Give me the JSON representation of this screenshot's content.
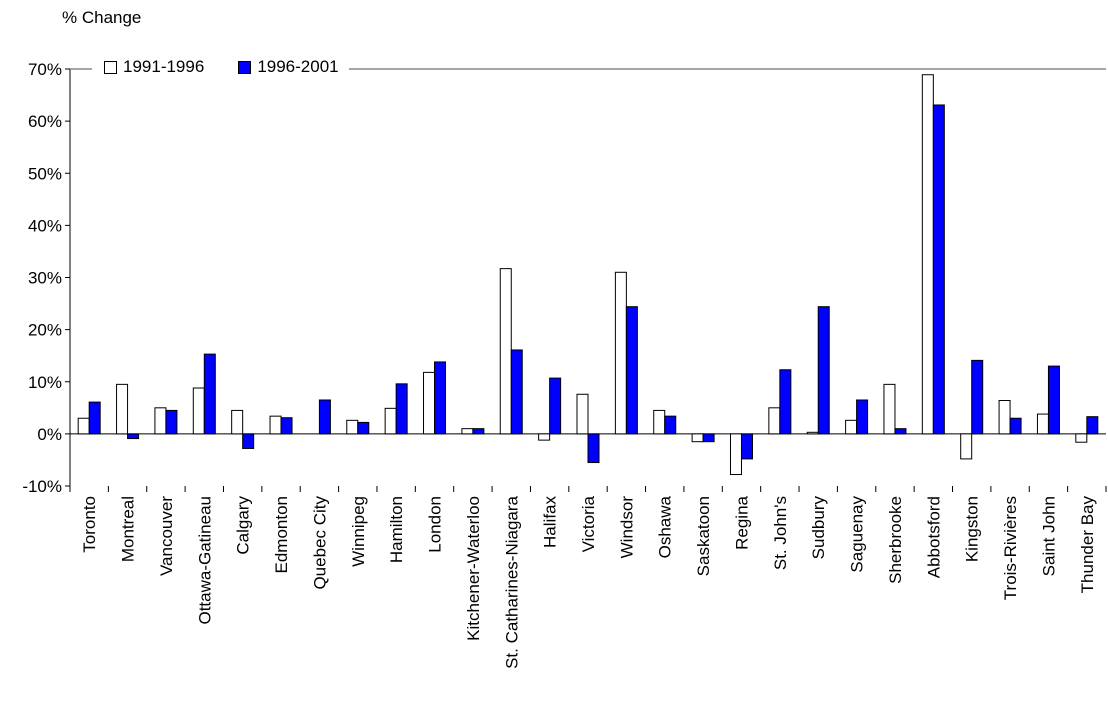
{
  "chart_data": {
    "type": "bar",
    "ylabel": "% Change",
    "ylim": [
      -10,
      70
    ],
    "yticks": [
      "70%",
      "60%",
      "50%",
      "40%",
      "30%",
      "20%",
      "10%",
      "0%",
      "-10%"
    ],
    "ytick_values": [
      70,
      60,
      50,
      40,
      30,
      20,
      10,
      0,
      -10
    ],
    "grid": false,
    "legend": "top-left",
    "categories": [
      "Toronto",
      "Montreal",
      "Vancouver",
      "Ottawa-Gatineau",
      "Calgary",
      "Edmonton",
      "Quebec City",
      "Winnipeg",
      "Hamilton",
      "London",
      "Kitchener-Waterloo",
      "St. Catharines-Niagara",
      "Halifax",
      "Victoria",
      "Windsor",
      "Oshawa",
      "Saskatoon",
      "Regina",
      "St. John's",
      "Sudbury",
      "Saguenay",
      "Sherbrooke",
      "Abbotsford",
      "Kingston",
      "Trois-Rivières",
      "Saint John",
      "Thunder Bay"
    ],
    "series": [
      {
        "name": "1991-1996",
        "color": "#ffffff",
        "values": [
          3.0,
          9.5,
          5.0,
          8.8,
          4.5,
          3.4,
          0,
          2.6,
          4.9,
          11.8,
          1.0,
          31.7,
          -1.2,
          7.6,
          31.0,
          4.5,
          -1.5,
          -7.8,
          5.0,
          0.3,
          2.6,
          9.5,
          68.9,
          -4.8,
          6.4,
          3.8,
          -1.6
        ]
      },
      {
        "name": "1996-2001",
        "color": "#0000ff",
        "values": [
          6.1,
          -0.9,
          4.5,
          15.3,
          -2.8,
          3.1,
          6.5,
          2.2,
          9.6,
          13.8,
          1.0,
          16.1,
          10.7,
          -5.5,
          24.4,
          3.4,
          -1.5,
          -4.8,
          12.3,
          24.4,
          6.5,
          1.0,
          63.1,
          14.1,
          3.0,
          13.0,
          3.3
        ]
      }
    ]
  }
}
